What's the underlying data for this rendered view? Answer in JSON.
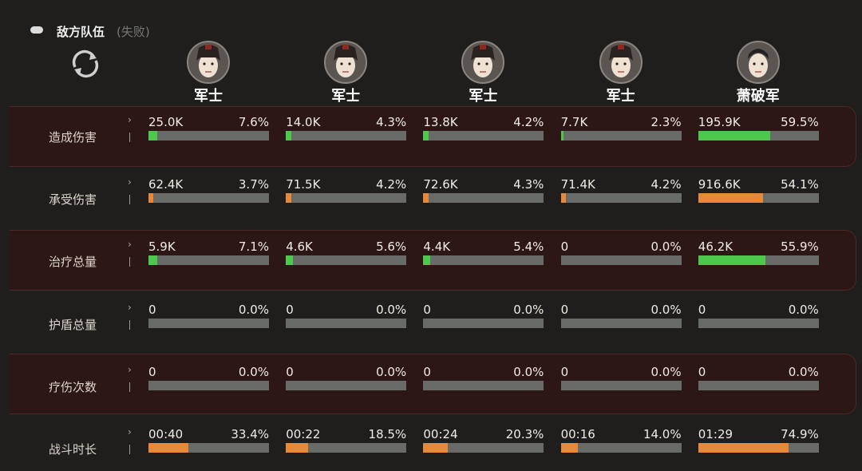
{
  "header": {
    "title": "敌方队伍",
    "status": "(失败)"
  },
  "columns": [
    {
      "name": "军士"
    },
    {
      "name": "军士"
    },
    {
      "name": "军士"
    },
    {
      "name": "军士"
    },
    {
      "name": "萧破军"
    }
  ],
  "rows": [
    {
      "label": "造成伤害",
      "bar_color": "#4cc84c",
      "cells": [
        {
          "value": "25.0K",
          "percent": {
            "value": 7.6,
            "label": "7.6%"
          }
        },
        {
          "value": "14.0K",
          "percent": {
            "value": 4.3,
            "label": "4.3%"
          }
        },
        {
          "value": "13.8K",
          "percent": {
            "value": 4.2,
            "label": "4.2%"
          }
        },
        {
          "value": "7.7K",
          "percent": {
            "value": 2.3,
            "label": "2.3%"
          }
        },
        {
          "value": "195.9K",
          "percent": {
            "value": 59.5,
            "label": "59.5%"
          }
        }
      ]
    },
    {
      "label": "承受伤害",
      "bar_color": "#e8893a",
      "cells": [
        {
          "value": "62.4K",
          "percent": {
            "value": 3.7,
            "label": "3.7%"
          }
        },
        {
          "value": "71.5K",
          "percent": {
            "value": 4.2,
            "label": "4.2%"
          }
        },
        {
          "value": "72.6K",
          "percent": {
            "value": 4.3,
            "label": "4.3%"
          }
        },
        {
          "value": "71.4K",
          "percent": {
            "value": 4.2,
            "label": "4.2%"
          }
        },
        {
          "value": "916.6K",
          "percent": {
            "value": 54.1,
            "label": "54.1%"
          }
        }
      ]
    },
    {
      "label": "治疗总量",
      "bar_color": "#4cc84c",
      "cells": [
        {
          "value": "5.9K",
          "percent": {
            "value": 7.1,
            "label": "7.1%"
          }
        },
        {
          "value": "4.6K",
          "percent": {
            "value": 5.6,
            "label": "5.6%"
          }
        },
        {
          "value": "4.4K",
          "percent": {
            "value": 5.4,
            "label": "5.4%"
          }
        },
        {
          "value": "0",
          "percent": {
            "value": 0.0,
            "label": "0.0%"
          }
        },
        {
          "value": "46.2K",
          "percent": {
            "value": 55.9,
            "label": "55.9%"
          }
        }
      ]
    },
    {
      "label": "护盾总量",
      "bar_color": "#4cc84c",
      "cells": [
        {
          "value": "0",
          "percent": {
            "value": 0.0,
            "label": "0.0%"
          }
        },
        {
          "value": "0",
          "percent": {
            "value": 0.0,
            "label": "0.0%"
          }
        },
        {
          "value": "0",
          "percent": {
            "value": 0.0,
            "label": "0.0%"
          }
        },
        {
          "value": "0",
          "percent": {
            "value": 0.0,
            "label": "0.0%"
          }
        },
        {
          "value": "0",
          "percent": {
            "value": 0.0,
            "label": "0.0%"
          }
        }
      ]
    },
    {
      "label": "疗伤次数",
      "bar_color": "#4cc84c",
      "cells": [
        {
          "value": "0",
          "percent": {
            "value": 0.0,
            "label": "0.0%"
          }
        },
        {
          "value": "0",
          "percent": {
            "value": 0.0,
            "label": "0.0%"
          }
        },
        {
          "value": "0",
          "percent": {
            "value": 0.0,
            "label": "0.0%"
          }
        },
        {
          "value": "0",
          "percent": {
            "value": 0.0,
            "label": "0.0%"
          }
        },
        {
          "value": "0",
          "percent": {
            "value": 0.0,
            "label": "0.0%"
          }
        }
      ]
    },
    {
      "label": "战斗时长",
      "bar_color": "#e8893a",
      "cells": [
        {
          "value": "00:40",
          "percent": {
            "value": 33.4,
            "label": "33.4%"
          }
        },
        {
          "value": "00:22",
          "percent": {
            "value": 18.5,
            "label": "18.5%"
          }
        },
        {
          "value": "00:24",
          "percent": {
            "value": 20.3,
            "label": "20.3%"
          }
        },
        {
          "value": "00:16",
          "percent": {
            "value": 14.0,
            "label": "14.0%"
          }
        },
        {
          "value": "01:29",
          "percent": {
            "value": 74.9,
            "label": "74.9%"
          }
        }
      ]
    }
  ]
}
